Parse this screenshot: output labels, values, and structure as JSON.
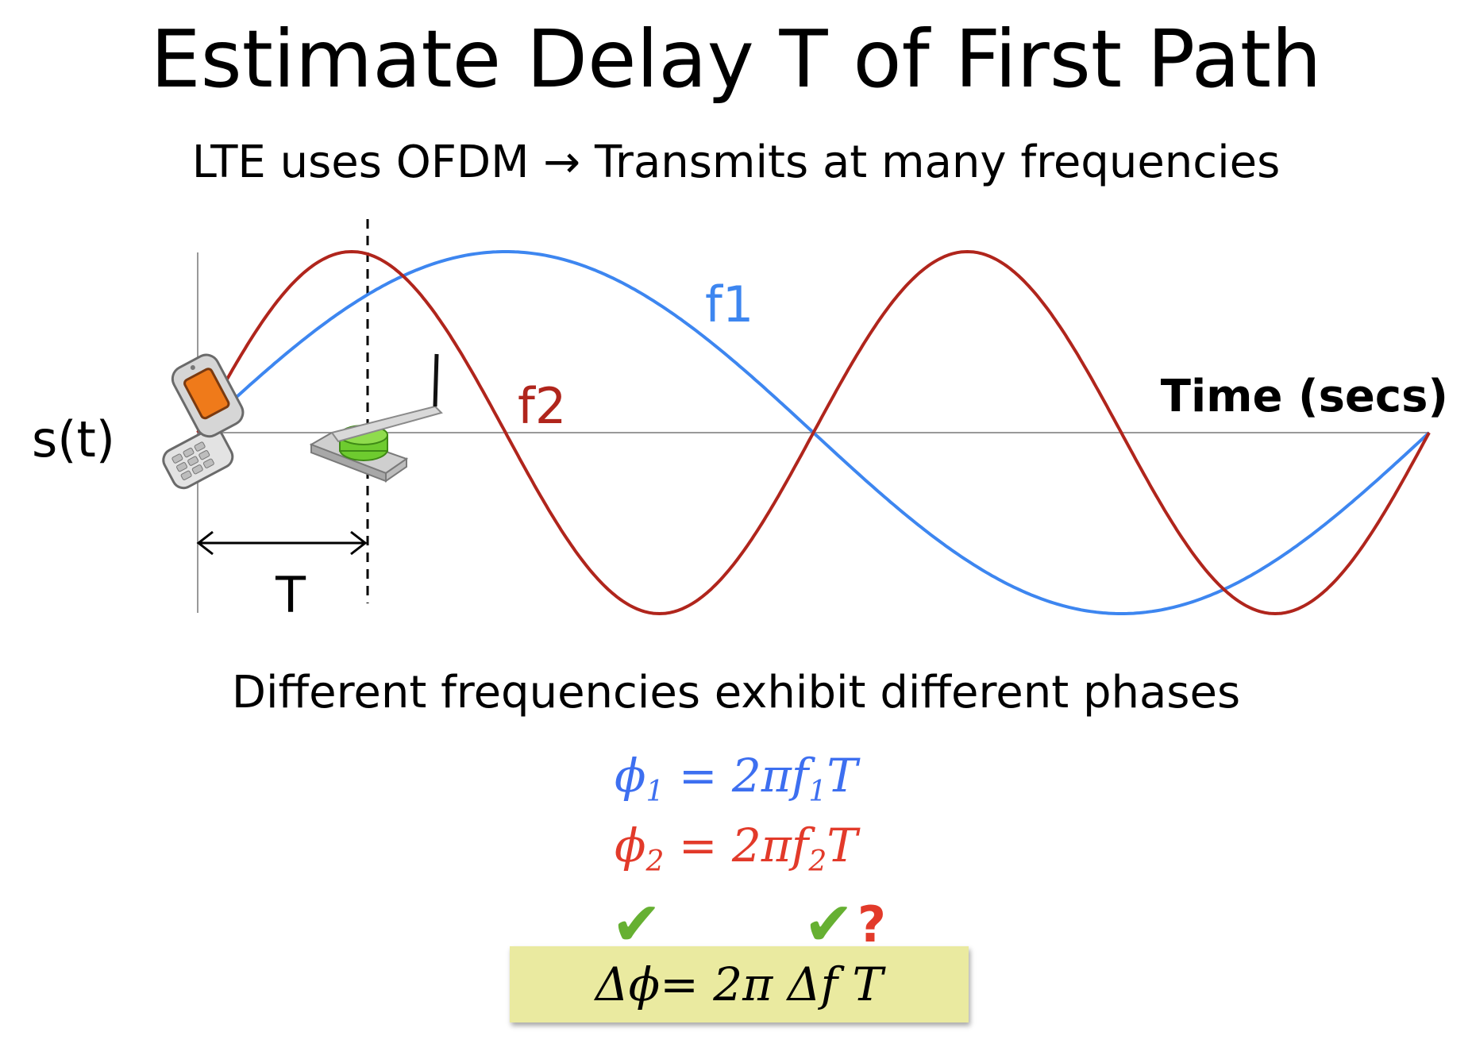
{
  "title": "Estimate Delay T of First Path",
  "subtitle": "LTE uses OFDM → Transmits at many frequencies",
  "diagram": {
    "y_axis_label": "s(t)",
    "x_axis_label": "Time (secs)",
    "delay_label": "T",
    "series": [
      {
        "name": "f1",
        "color": "#3d86f0"
      },
      {
        "name": "f2",
        "color": "#b0251c"
      }
    ]
  },
  "caption": "Different frequencies exhibit different phases",
  "equations": {
    "eq1": {
      "lhs": "ϕ",
      "sub": "1",
      "mid": " = 2πf",
      "sub2": "1",
      "rhs": "T",
      "color": "#3d6ff0"
    },
    "eq2": {
      "lhs": "ϕ",
      "sub": "2",
      "mid": " = 2πf",
      "sub2": "2",
      "rhs": "T",
      "color": "#e23a2a"
    }
  },
  "highlight": {
    "equation": "Δϕ=  2π Δf T",
    "check_mark": "✔",
    "question_mark": "?",
    "box_color": "#eaeaa0"
  }
}
